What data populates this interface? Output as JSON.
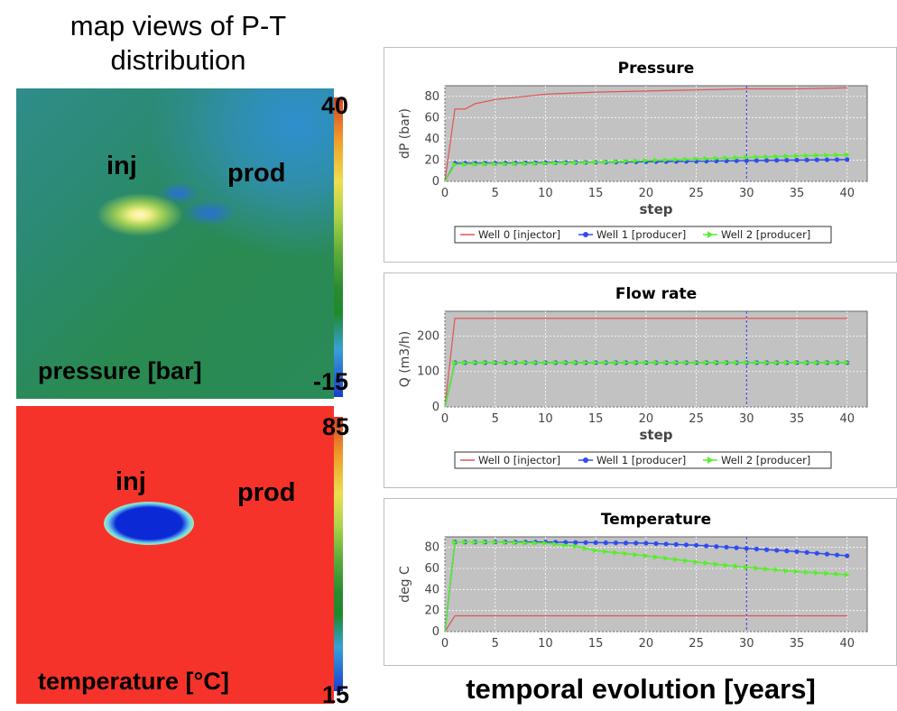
{
  "left": {
    "title": "map views of P-T distribution",
    "pressure_map": {
      "inj_label": "inj",
      "prod_label": "prod",
      "caption": "pressure [bar]",
      "max_label": "40",
      "min_label": "-15"
    },
    "temperature_map": {
      "inj_label": "inj",
      "prod_label": "prod",
      "caption": "temperature [°C]",
      "max_label": "85",
      "min_label": "15"
    }
  },
  "bottom_caption": "temporal evolution [years]",
  "colors": {
    "injector": "#e05555",
    "producer1": "#2f4cf0",
    "producer2": "#55ee2a",
    "plot_bg": "#c2c2c2",
    "marker": "#3a3ae0"
  },
  "chart_data": [
    {
      "type": "line",
      "title": "Pressure",
      "xlabel": "step",
      "ylabel": "dP (bar)",
      "xlim": [
        0,
        42
      ],
      "ylim": [
        0,
        90
      ],
      "xticks": [
        0,
        5,
        10,
        15,
        20,
        25,
        30,
        35,
        40
      ],
      "yticks": [
        0,
        20,
        40,
        60,
        80
      ],
      "vline": 30,
      "legend": [
        "Well 0 [injector]",
        "Well 1 [producer]",
        "Well 2 [producer]"
      ],
      "series": [
        {
          "name": "Well 0 [injector]",
          "x": [
            0,
            1,
            2,
            3,
            5,
            8,
            10,
            15,
            20,
            25,
            30,
            35,
            40
          ],
          "y": [
            0,
            68,
            68,
            73,
            77,
            80,
            82,
            84,
            85,
            86,
            87,
            87,
            88
          ]
        },
        {
          "name": "Well 1 [producer]",
          "x": [
            0,
            1,
            5,
            10,
            15,
            20,
            25,
            30,
            35,
            40
          ],
          "y": [
            0,
            17,
            17,
            17.5,
            18,
            18.5,
            19,
            19.5,
            20,
            20.5
          ]
        },
        {
          "name": "Well 2 [producer]",
          "x": [
            0,
            1,
            5,
            10,
            15,
            20,
            25,
            30,
            35,
            40
          ],
          "y": [
            0,
            16,
            16.5,
            17,
            18,
            19.5,
            21,
            22.5,
            24,
            25
          ]
        }
      ]
    },
    {
      "type": "line",
      "title": "Flow rate",
      "xlabel": "step",
      "ylabel": "Q (m3/h)",
      "xlim": [
        0,
        42
      ],
      "ylim": [
        0,
        270
      ],
      "xticks": [
        0,
        5,
        10,
        15,
        20,
        25,
        30,
        35,
        40
      ],
      "yticks": [
        0,
        100,
        200
      ],
      "vline": 30,
      "legend": [
        "Well 0 [injector]",
        "Well 1 [producer]",
        "Well 2 [producer]"
      ],
      "series": [
        {
          "name": "Well 0 [injector]",
          "x": [
            0,
            1,
            40
          ],
          "y": [
            0,
            250,
            250
          ]
        },
        {
          "name": "Well 1 [producer]",
          "x": [
            0,
            1,
            40
          ],
          "y": [
            0,
            125,
            125
          ]
        },
        {
          "name": "Well 2 [producer]",
          "x": [
            0,
            1,
            40
          ],
          "y": [
            0,
            125,
            125
          ]
        }
      ]
    },
    {
      "type": "line",
      "title": "Temperature",
      "xlabel": "",
      "ylabel": "deg C",
      "xlim": [
        0,
        42
      ],
      "ylim": [
        0,
        90
      ],
      "xticks": [
        0,
        5,
        10,
        15,
        20,
        25,
        30,
        35,
        40
      ],
      "yticks": [
        0,
        20,
        40,
        60,
        80
      ],
      "vline": 30,
      "legend": [],
      "series": [
        {
          "name": "Well 0 [injector]",
          "x": [
            0,
            1,
            40
          ],
          "y": [
            0,
            15,
            15
          ]
        },
        {
          "name": "Well 1 [producer]",
          "x": [
            0,
            1,
            5,
            10,
            15,
            20,
            25,
            30,
            35,
            40
          ],
          "y": [
            0,
            85,
            85,
            85,
            84.5,
            84,
            82,
            79,
            76,
            72
          ]
        },
        {
          "name": "Well 2 [producer]",
          "x": [
            0,
            1,
            5,
            10,
            13,
            15,
            20,
            25,
            30,
            35,
            40
          ],
          "y": [
            0,
            85,
            85,
            84,
            81,
            77,
            72,
            66,
            61,
            57,
            54
          ]
        }
      ]
    }
  ]
}
